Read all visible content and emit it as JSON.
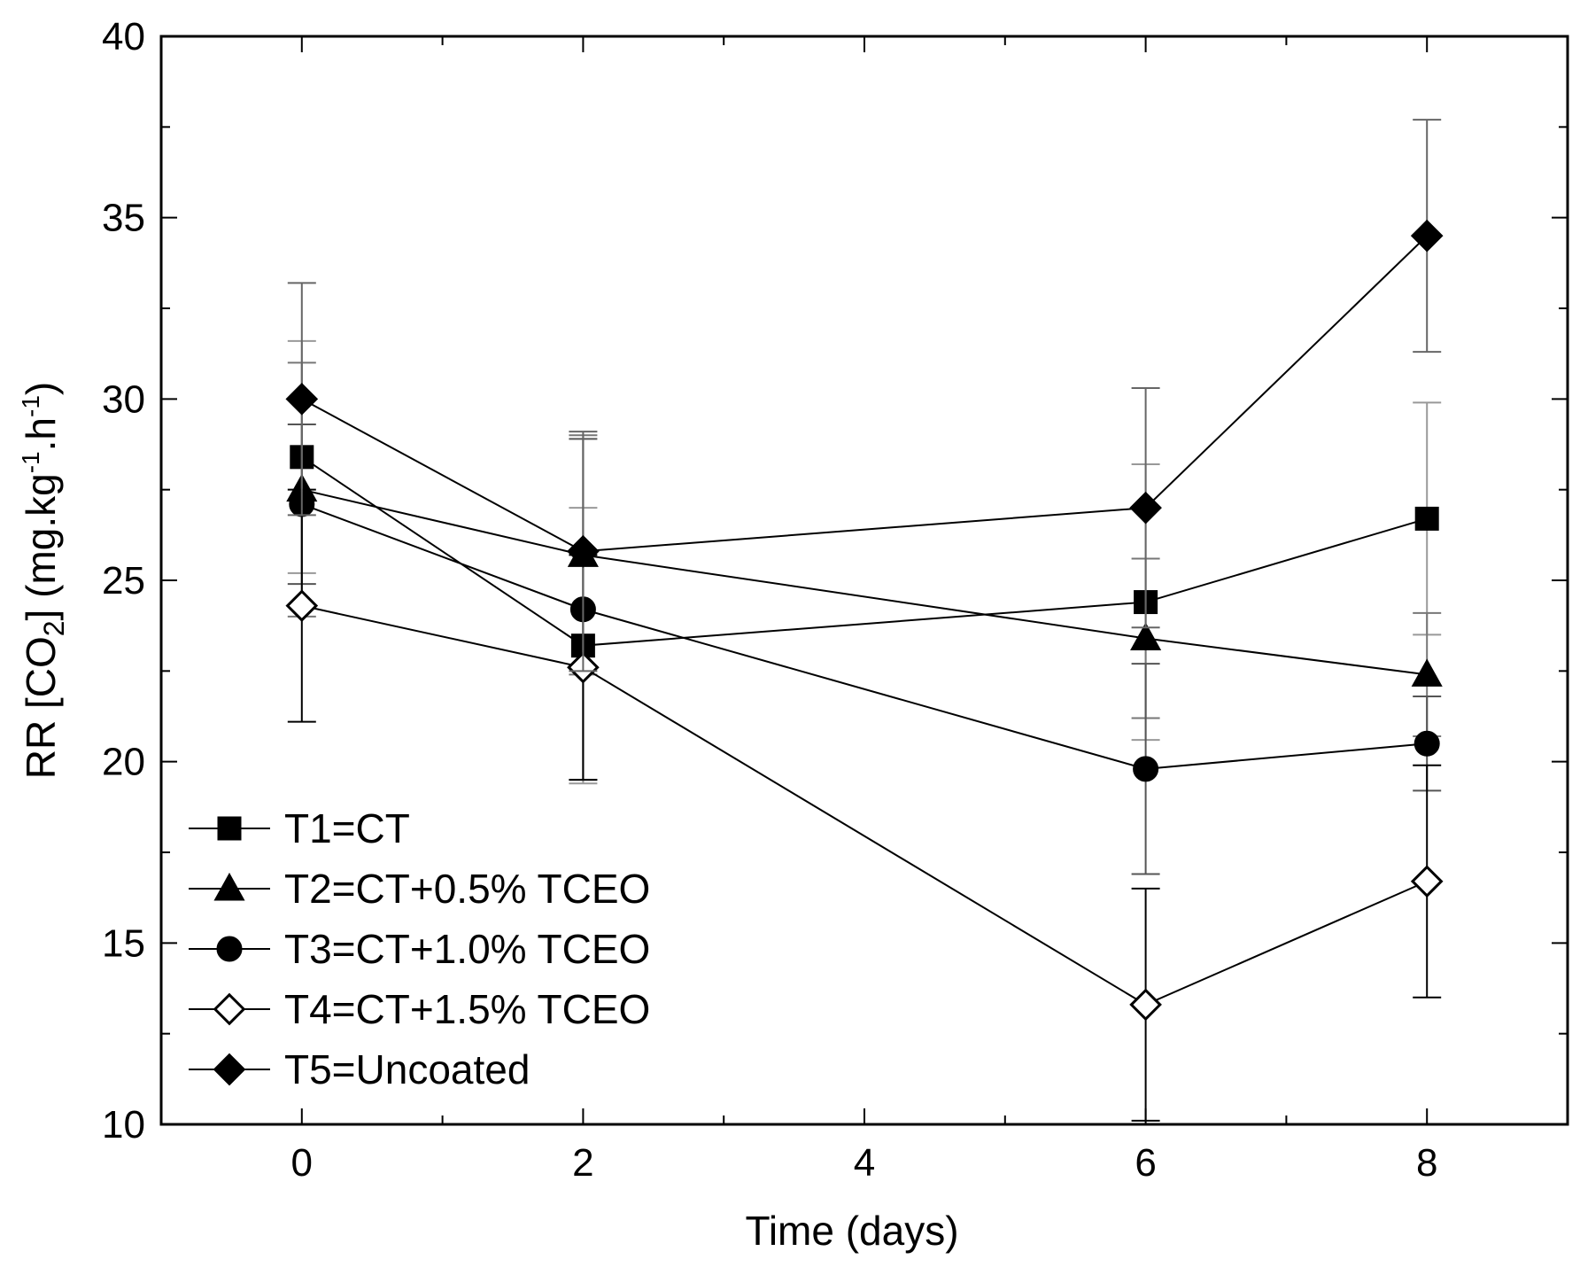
{
  "chart_data": {
    "type": "line",
    "title": "",
    "xlabel": "Time (days)",
    "ylabel": "RR [CO2] (mg.kg-1.h-1)",
    "ylabel_parts": {
      "pre": "RR [CO",
      "sub": "2",
      "mid": "] (mg.kg",
      "sup1": "-1",
      "mid2": ".h",
      "sup2": "-1",
      "post": ")"
    },
    "xlim": [
      -1,
      9
    ],
    "ylim": [
      10,
      40
    ],
    "x_ticks": [
      0,
      2,
      4,
      6,
      8
    ],
    "y_ticks": [
      10,
      15,
      20,
      25,
      30,
      35,
      40
    ],
    "legend_position": "bottom-left",
    "x": [
      0,
      2,
      6,
      8
    ],
    "series": [
      {
        "name": "T1=CT",
        "marker": "square",
        "filled": true,
        "values": [
          28.4,
          23.2,
          24.4,
          26.7
        ],
        "err": [
          3.2,
          3.8,
          3.8,
          3.2
        ]
      },
      {
        "name": "T2=CT+0.5% TCEO",
        "marker": "triangle",
        "filled": true,
        "values": [
          27.5,
          25.7,
          23.4,
          22.4
        ],
        "err": [
          3.5,
          3.3,
          2.2,
          1.7
        ]
      },
      {
        "name": "T3=CT+1.0% TCEO",
        "marker": "circle",
        "filled": true,
        "values": [
          27.1,
          24.2,
          19.8,
          20.5
        ],
        "err": [
          2.2,
          4.7,
          2.9,
          1.3
        ]
      },
      {
        "name": "T4=CT+1.5% TCEO",
        "marker": "diamond",
        "filled": false,
        "values": [
          24.3,
          22.6,
          13.3,
          16.7
        ],
        "err": [
          3.2,
          3.1,
          3.2,
          3.2
        ]
      },
      {
        "name": "T5=Uncoated",
        "marker": "diamond",
        "filled": true,
        "values": [
          30.0,
          25.8,
          27.0,
          34.5
        ],
        "err": [
          3.2,
          3.3,
          3.3,
          3.2
        ]
      }
    ]
  }
}
